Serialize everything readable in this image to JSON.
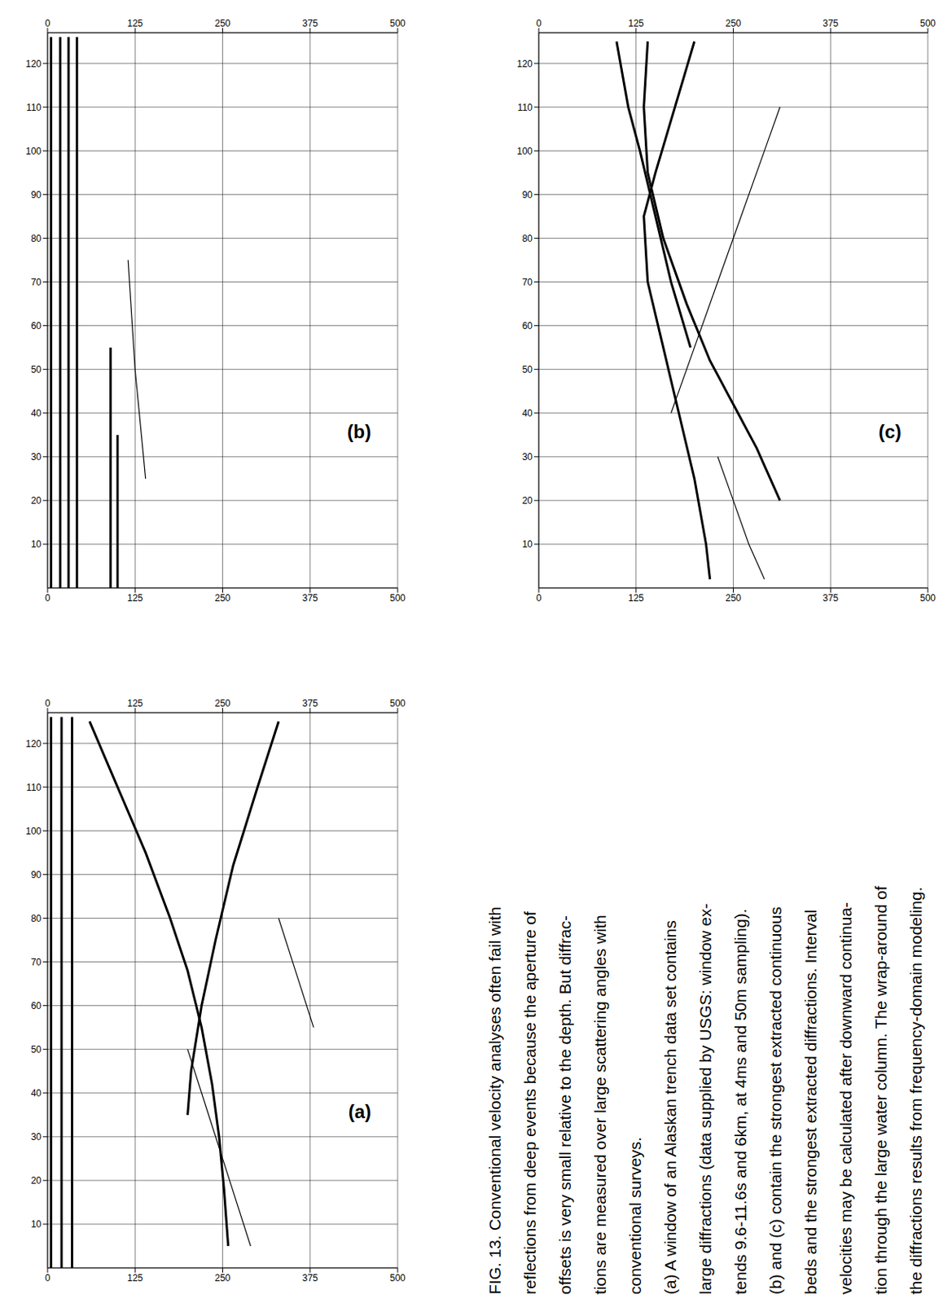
{
  "chart_data": [
    {
      "type": "line",
      "panel_label": "(b)",
      "xlim": [
        0,
        500
      ],
      "xticks": [
        0,
        125,
        250,
        375,
        500
      ],
      "ylim": [
        0,
        127
      ],
      "yticks": [
        10,
        20,
        30,
        40,
        50,
        60,
        70,
        80,
        90,
        100,
        110,
        120
      ],
      "grid": true,
      "series": [
        {
          "color": "#000000",
          "line_style": "solid",
          "x": [
            5,
            5
          ],
          "values": [
            0,
            126
          ]
        },
        {
          "color": "#000000",
          "line_style": "solid",
          "x": [
            18,
            18
          ],
          "values": [
            0,
            126
          ]
        },
        {
          "color": "#000000",
          "line_style": "solid",
          "x": [
            30,
            30
          ],
          "values": [
            0,
            126
          ]
        },
        {
          "color": "#000000",
          "line_style": "solid",
          "x": [
            42,
            42
          ],
          "values": [
            0,
            126
          ]
        },
        {
          "color": "#000000",
          "line_style": "solid",
          "x": [
            90,
            90
          ],
          "values": [
            0,
            55
          ]
        },
        {
          "color": "#000000",
          "line_style": "solid",
          "x": [
            100,
            100
          ],
          "values": [
            0,
            35
          ]
        },
        {
          "color": "#000000",
          "line_style": "thin",
          "x": [
            115,
            125,
            140
          ],
          "values": [
            75,
            50,
            25
          ]
        }
      ]
    },
    {
      "type": "line",
      "panel_label": "(c)",
      "xlim": [
        0,
        500
      ],
      "xticks": [
        0,
        125,
        250,
        375,
        500
      ],
      "ylim": [
        0,
        127
      ],
      "yticks": [
        10,
        20,
        30,
        40,
        50,
        60,
        70,
        80,
        90,
        100,
        110,
        120
      ],
      "grid": true,
      "series": [
        {
          "color": "#000000",
          "line_style": "solid",
          "x": [
            200,
            175,
            150,
            135,
            140,
            160,
            180,
            200,
            215,
            220
          ],
          "values": [
            125,
            110,
            95,
            85,
            70,
            55,
            40,
            25,
            10,
            2
          ]
        },
        {
          "color": "#000000",
          "line_style": "solid",
          "x": [
            140,
            135,
            140,
            160,
            190,
            220,
            250,
            280,
            310
          ],
          "values": [
            125,
            110,
            95,
            80,
            65,
            52,
            42,
            32,
            20
          ]
        },
        {
          "color": "#000000",
          "line_style": "solid",
          "x": [
            100,
            115,
            130,
            150,
            170,
            195
          ],
          "values": [
            125,
            110,
            100,
            85,
            70,
            55
          ]
        },
        {
          "color": "#000000",
          "line_style": "thin",
          "x": [
            170,
            200,
            230,
            260,
            290,
            310
          ],
          "values": [
            40,
            55,
            70,
            85,
            100,
            110
          ]
        },
        {
          "color": "#000000",
          "line_style": "thin",
          "x": [
            230,
            250,
            270,
            290
          ],
          "values": [
            30,
            20,
            10,
            2
          ]
        }
      ]
    },
    {
      "type": "line",
      "panel_label": "(a)",
      "xlim": [
        0,
        500
      ],
      "xticks": [
        0,
        125,
        250,
        375,
        500
      ],
      "ylim": [
        0,
        127
      ],
      "yticks": [
        10,
        20,
        30,
        40,
        50,
        60,
        70,
        80,
        90,
        100,
        110,
        120
      ],
      "grid": true,
      "series": [
        {
          "color": "#000000",
          "line_style": "solid",
          "x": [
            5,
            5
          ],
          "values": [
            0,
            126
          ]
        },
        {
          "color": "#000000",
          "line_style": "solid",
          "x": [
            20,
            20
          ],
          "values": [
            0,
            126
          ]
        },
        {
          "color": "#000000",
          "line_style": "solid",
          "x": [
            35,
            35
          ],
          "values": [
            0,
            126
          ]
        },
        {
          "color": "#000000",
          "line_style": "solid",
          "x": [
            60,
            100,
            140,
            175,
            200,
            220,
            235,
            245,
            252,
            258
          ],
          "values": [
            125,
            110,
            95,
            80,
            68,
            55,
            42,
            30,
            18,
            5
          ]
        },
        {
          "color": "#000000",
          "line_style": "solid",
          "x": [
            330,
            300,
            265,
            240,
            220,
            205,
            200
          ],
          "values": [
            125,
            110,
            92,
            75,
            60,
            45,
            35
          ]
        },
        {
          "color": "#000000",
          "line_style": "thin",
          "x": [
            200,
            230,
            260,
            290
          ],
          "values": [
            50,
            35,
            20,
            5
          ]
        },
        {
          "color": "#000000",
          "line_style": "thin",
          "x": [
            330,
            360,
            380
          ],
          "values": [
            80,
            65,
            55
          ]
        }
      ]
    }
  ],
  "caption": {
    "lines": [
      "FIG. 13. Conventional velocity analyses often fail with",
      "reflections from deep events because the aperture of",
      "offsets is very small relative to the depth. But diffrac-",
      "tions are measured over large scattering angles with",
      "conventional surveys.",
      "(a) A window of an Alaskan trench data set contains",
      "large diffractions (data supplied by USGS: window ex-",
      "tends 9.6-11.6s and 6km, at 4ms and 50m sampling).",
      "(b) and (c) contain the strongest extracted continuous",
      "beds and the strongest extracted diffractions. Interval",
      "velocities may be calculated after downward continua-",
      "tion through the large water column. The wrap-around of",
      "the diffractions results from frequency-domain modeling."
    ]
  }
}
